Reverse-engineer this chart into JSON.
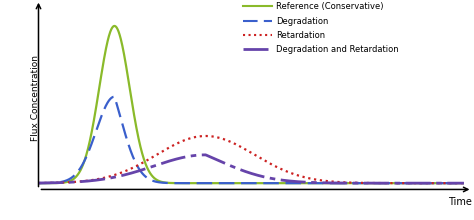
{
  "title": "",
  "ylabel": "Flux Concentration",
  "xlabel": "Time",
  "background_color": "#ffffff",
  "legend_entries": [
    "Reference (Conservative)",
    "Degradation",
    "Retardation",
    "Degradation and Retardation"
  ],
  "colors": {
    "reference": "#8aba2a",
    "degradation": "#3a5fcc",
    "retardation": "#cc2222",
    "deg_ret": "#6644aa"
  },
  "xlim": [
    0,
    14
  ],
  "ylim": [
    -0.04,
    1.12
  ],
  "curve_params": {
    "reference": {
      "mu": 2.5,
      "sigma": 0.5,
      "amp": 1.0
    },
    "degradation": {
      "mu": 2.5,
      "sigma": 0.6,
      "amp": 0.55,
      "decay": 1.1
    },
    "retardation": {
      "mu": 5.5,
      "sigma": 1.6,
      "amp": 0.3
    },
    "deg_ret": {
      "mu": 5.5,
      "sigma": 1.7,
      "amp": 0.18,
      "decay": 0.45
    }
  }
}
